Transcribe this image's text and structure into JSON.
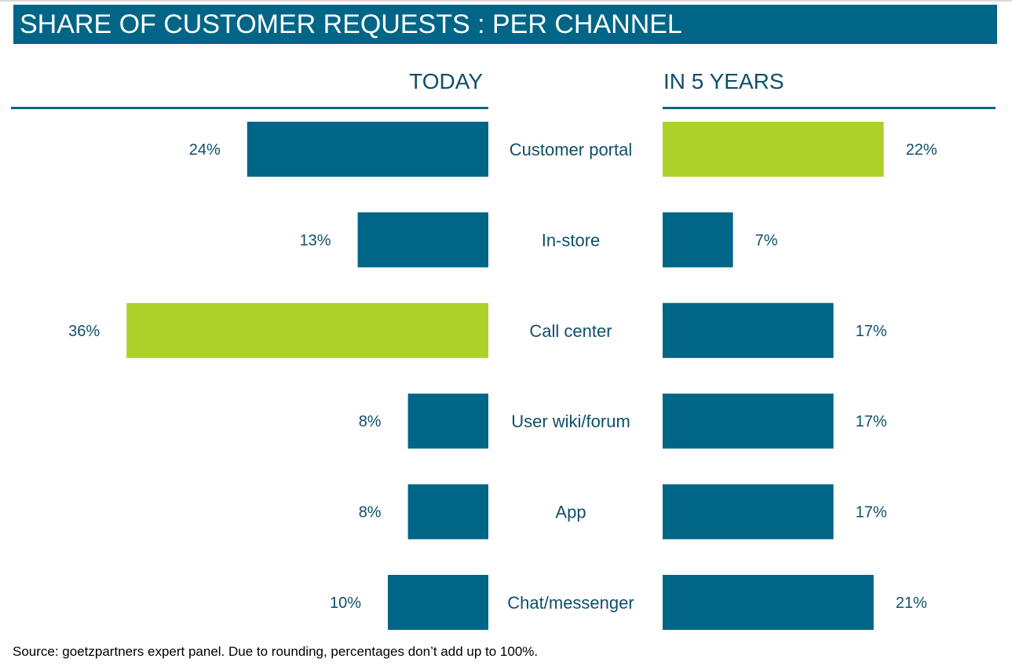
{
  "title": "SHARE OF CUSTOMER REQUESTS : PER CHANNEL",
  "source": "Source: goetzpartners expert panel. Due to rounding, percentages don’t add up to 100%.",
  "colors": {
    "primary": "#006586",
    "highlight": "#acd22a",
    "text": "#0f4f6b"
  },
  "chart_data": {
    "type": "bar",
    "orientation": "horizontal",
    "layout": "back-to-back",
    "categories": [
      "Customer portal",
      "In-store",
      "Call center",
      "User wiki/forum",
      "App",
      "Chat/messenger"
    ],
    "series": [
      {
        "name": "TODAY",
        "values": [
          24,
          13,
          36,
          8,
          8,
          10
        ],
        "labels": [
          "24%",
          "13%",
          "36%",
          "8%",
          "8%",
          "10%"
        ],
        "highlight_index": 2
      },
      {
        "name": "IN 5 YEARS",
        "values": [
          22,
          7,
          17,
          17,
          17,
          21
        ],
        "labels": [
          "22%",
          "7%",
          "17%",
          "17%",
          "17%",
          "21%"
        ],
        "highlight_index": 0
      }
    ],
    "unit": "%",
    "grid": false,
    "legend": "panel-headers"
  }
}
